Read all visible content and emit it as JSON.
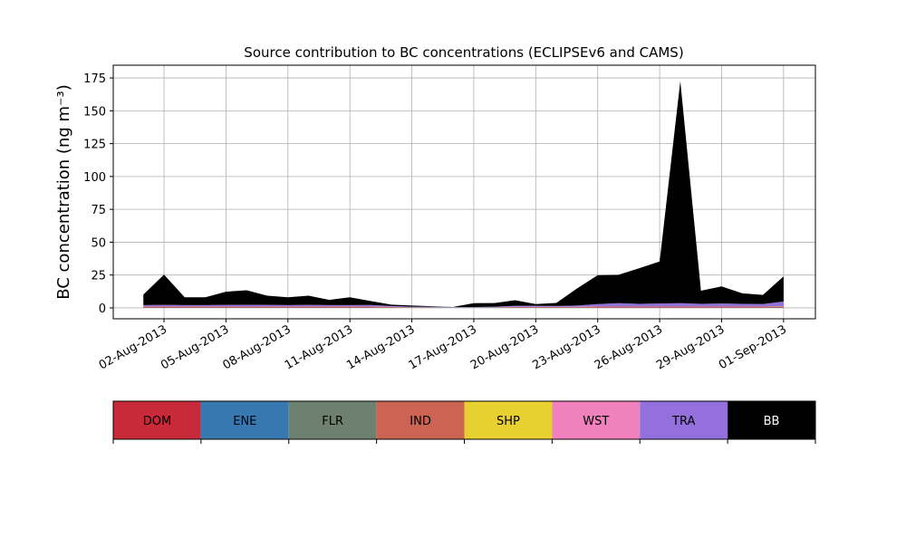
{
  "chart_data": {
    "type": "stacked_area",
    "title": "Source contribution to BC concentrations (ECLIPSEv6 and CAMS)",
    "y_label": "BC concentration (ng m⁻³)",
    "x": [
      "2013-08-01",
      "2013-08-02",
      "2013-08-03",
      "2013-08-04",
      "2013-08-05",
      "2013-08-06",
      "2013-08-07",
      "2013-08-08",
      "2013-08-09",
      "2013-08-10",
      "2013-08-11",
      "2013-08-12",
      "2013-08-13",
      "2013-08-14",
      "2013-08-15",
      "2013-08-16",
      "2013-08-17",
      "2013-08-18",
      "2013-08-19",
      "2013-08-20",
      "2013-08-21",
      "2013-08-22",
      "2013-08-23",
      "2013-08-24",
      "2013-08-25",
      "2013-08-26",
      "2013-08-27",
      "2013-08-28",
      "2013-08-29",
      "2013-08-30",
      "2013-08-31",
      "2013-09-01"
    ],
    "series": [
      {
        "name": "DOM",
        "color": "#c82a3a",
        "values": [
          0.3,
          0.3,
          0.3,
          0.3,
          0.3,
          0.3,
          0.3,
          0.3,
          0.3,
          0.3,
          0.3,
          0.3,
          0.2,
          0.1,
          0.1,
          0.1,
          0.1,
          0.1,
          0.2,
          0.2,
          0.2,
          0.2,
          0.3,
          0.3,
          0.3,
          0.3,
          0.3,
          0.3,
          0.3,
          0.3,
          0.3,
          0.4
        ]
      },
      {
        "name": "ENE",
        "color": "#3778b0",
        "values": [
          0.2,
          0.2,
          0.2,
          0.2,
          0.2,
          0.2,
          0.2,
          0.2,
          0.2,
          0.2,
          0.2,
          0.2,
          0.1,
          0.1,
          0.1,
          0.1,
          0.1,
          0.1,
          0.1,
          0.1,
          0.1,
          0.1,
          0.2,
          0.2,
          0.2,
          0.2,
          0.2,
          0.2,
          0.2,
          0.2,
          0.2,
          0.3
        ]
      },
      {
        "name": "FLR",
        "color": "#6e8070",
        "values": [
          0.1,
          0.1,
          0.1,
          0.1,
          0.1,
          0.1,
          0.1,
          0.1,
          0.1,
          0.1,
          0.1,
          0.1,
          0.1,
          0.1,
          0.1,
          0.1,
          0.1,
          0.1,
          0.1,
          0.1,
          0.1,
          0.1,
          0.1,
          0.1,
          0.1,
          0.1,
          0.1,
          0.1,
          0.1,
          0.1,
          0.1,
          0.1
        ]
      },
      {
        "name": "IND",
        "color": "#cb6453",
        "values": [
          0.4,
          0.4,
          0.4,
          0.4,
          0.4,
          0.4,
          0.4,
          0.4,
          0.4,
          0.4,
          0.4,
          0.4,
          0.3,
          0.2,
          0.2,
          0.1,
          0.1,
          0.2,
          0.3,
          0.3,
          0.3,
          0.3,
          0.4,
          0.4,
          0.4,
          0.4,
          0.4,
          0.4,
          0.4,
          0.4,
          0.4,
          0.5
        ]
      },
      {
        "name": "SHP",
        "color": "#e7d030",
        "values": [
          0.05,
          0.05,
          0.05,
          0.05,
          0.05,
          0.05,
          0.05,
          0.05,
          0.05,
          0.05,
          0.05,
          0.05,
          0.05,
          0.05,
          0.05,
          0.05,
          0.05,
          0.05,
          0.05,
          0.05,
          0.05,
          0.05,
          0.05,
          0.05,
          0.05,
          0.05,
          0.05,
          0.05,
          0.05,
          0.05,
          0.05,
          0.05
        ]
      },
      {
        "name": "WST",
        "color": "#f081bd",
        "values": [
          0.05,
          0.05,
          0.05,
          0.05,
          0.05,
          0.05,
          0.05,
          0.05,
          0.05,
          0.05,
          0.05,
          0.05,
          0.05,
          0.05,
          0.05,
          0.05,
          0.05,
          0.05,
          0.05,
          0.05,
          0.05,
          0.05,
          0.05,
          0.05,
          0.05,
          0.05,
          0.05,
          0.05,
          0.05,
          0.05,
          0.05,
          0.05
        ]
      },
      {
        "name": "TRA",
        "color": "#9370db",
        "values": [
          1,
          1.2,
          1,
          1,
          1.2,
          1.3,
          1.2,
          1,
          1.2,
          1,
          1,
          1.1,
          0.6,
          0.3,
          0.3,
          0.2,
          0.2,
          0.3,
          0.8,
          0.8,
          0.6,
          1,
          1.8,
          2.5,
          2,
          2.2,
          2.5,
          2,
          2.2,
          2,
          1.8,
          3.5
        ]
      },
      {
        "name": "BB",
        "color": "#000000",
        "values": [
          8,
          23,
          6,
          6,
          10,
          11,
          7,
          6,
          7,
          4,
          6,
          3,
          1.1,
          0.9,
          0.4,
          0,
          2.9,
          2.8,
          4.2,
          1.3,
          2.4,
          13,
          22,
          21.5,
          27,
          32,
          169,
          10,
          13,
          8,
          7,
          19
        ]
      }
    ],
    "xlim": [
      "2013-07-30T13:00:00",
      "2013-09-02T13:00:00"
    ],
    "xticks": [
      {
        "value": "2013-08-02",
        "label": "02-Aug-2013"
      },
      {
        "value": "2013-08-05",
        "label": "05-Aug-2013"
      },
      {
        "value": "2013-08-08",
        "label": "08-Aug-2013"
      },
      {
        "value": "2013-08-11",
        "label": "11-Aug-2013"
      },
      {
        "value": "2013-08-14",
        "label": "14-Aug-2013"
      },
      {
        "value": "2013-08-17",
        "label": "17-Aug-2013"
      },
      {
        "value": "2013-08-20",
        "label": "20-Aug-2013"
      },
      {
        "value": "2013-08-23",
        "label": "23-Aug-2013"
      },
      {
        "value": "2013-08-26",
        "label": "26-Aug-2013"
      },
      {
        "value": "2013-08-29",
        "label": "29-Aug-2013"
      },
      {
        "value": "2013-09-01",
        "label": "01-Sep-2013"
      }
    ],
    "ylim": [
      -8.3,
      184.7
    ],
    "yticks": [
      0,
      25,
      50,
      75,
      100,
      125,
      150,
      175
    ],
    "grid": true
  }
}
